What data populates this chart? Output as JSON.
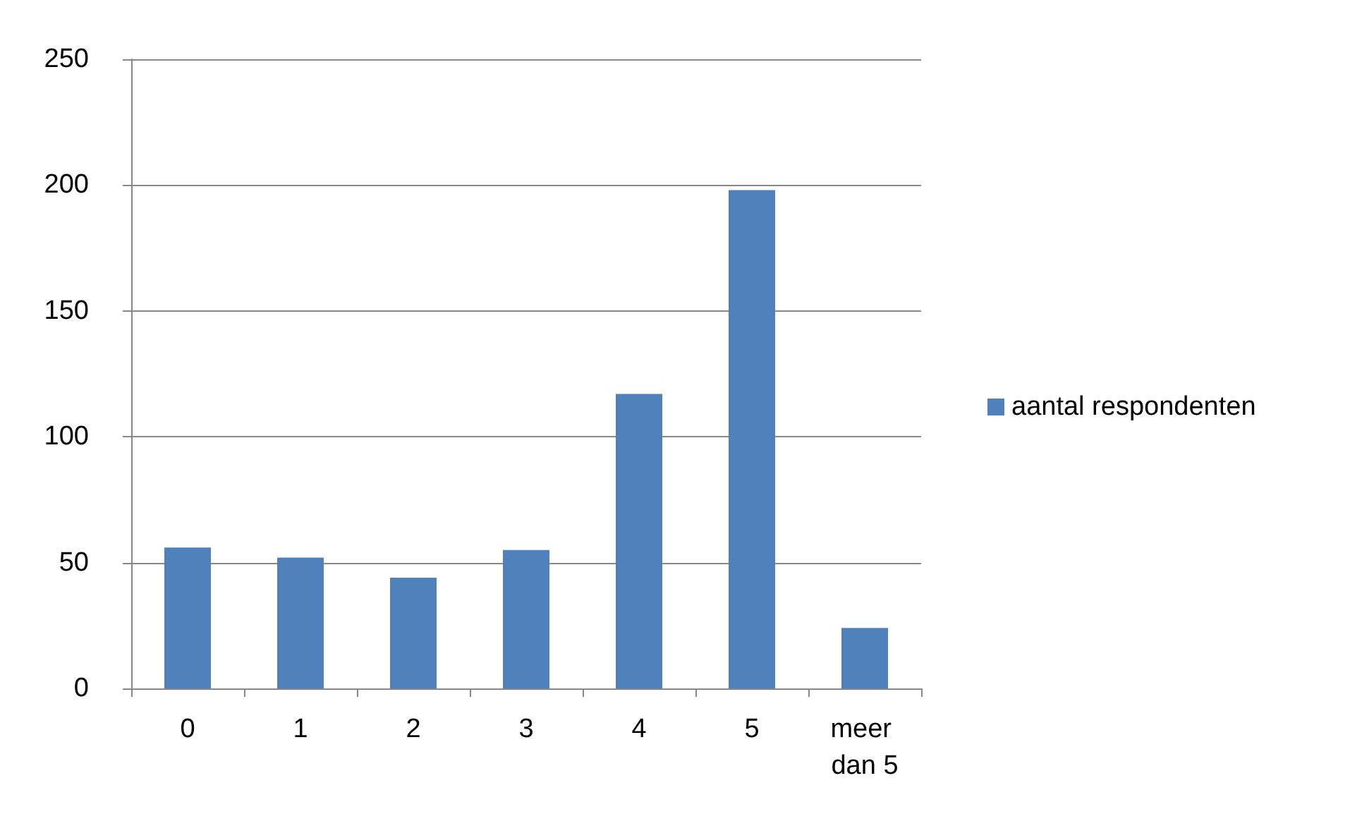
{
  "chart_data": {
    "type": "bar",
    "categories": [
      "0",
      "1",
      "2",
      "3",
      "4",
      "5",
      "meer dan 5"
    ],
    "series": [
      {
        "name": "aantal respondenten",
        "color": "#4f81bd",
        "values": [
          56,
          52,
          44,
          55,
          117,
          198,
          24
        ]
      }
    ],
    "ylim": [
      0,
      250
    ],
    "yticks": [
      0,
      50,
      100,
      150,
      200,
      250
    ],
    "grid": "y",
    "legend": "right"
  }
}
